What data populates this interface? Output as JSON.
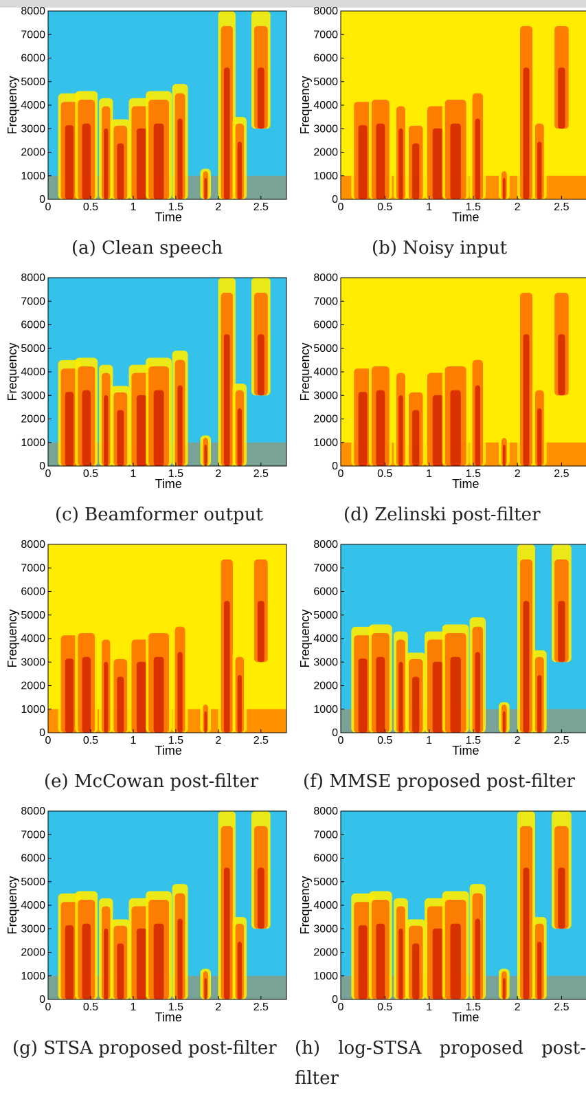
{
  "colors": {
    "background": "#3ec6e0",
    "lowEnergy": "#34c2ea",
    "midEnergy": "#ffec00",
    "highEnergy": "#ff6a00",
    "peakEnergy": "#c20000",
    "axis": "#000000"
  },
  "chart_data": [
    {
      "type": "heatmap",
      "caption": "(a) Clean speech",
      "xlabel": "Time",
      "ylabel": "Frequency",
      "xlim": [
        0,
        2.8
      ],
      "ylim": [
        0,
        8000
      ],
      "xticks": [
        "0",
        "0.5",
        "1",
        "1.5",
        "2",
        "2.5"
      ],
      "yticks": [
        "0",
        "1000",
        "2000",
        "3000",
        "4000",
        "5000",
        "6000",
        "7000",
        "8000"
      ]
    },
    {
      "type": "heatmap",
      "caption": "(b) Noisy input",
      "xlabel": "Time",
      "ylabel": "Frequency",
      "xlim": [
        0,
        2.8
      ],
      "ylim": [
        0,
        8000
      ],
      "xticks": [
        "0",
        "0.5",
        "1",
        "1.5",
        "2",
        "2.5"
      ],
      "yticks": [
        "0",
        "1000",
        "2000",
        "3000",
        "4000",
        "5000",
        "6000",
        "7000",
        "8000"
      ]
    },
    {
      "type": "heatmap",
      "caption": "(c) Beamformer output",
      "xlabel": "Time",
      "ylabel": "Frequency",
      "xlim": [
        0,
        2.8
      ],
      "ylim": [
        0,
        8000
      ],
      "xticks": [
        "0",
        "0.5",
        "1",
        "1.5",
        "2",
        "2.5"
      ],
      "yticks": [
        "0",
        "1000",
        "2000",
        "3000",
        "4000",
        "5000",
        "6000",
        "7000",
        "8000"
      ]
    },
    {
      "type": "heatmap",
      "caption": "(d) Zelinski post-filter",
      "xlabel": "Time",
      "ylabel": "Frequency",
      "xlim": [
        0,
        2.8
      ],
      "ylim": [
        0,
        8000
      ],
      "xticks": [
        "0",
        "0.5",
        "1",
        "1.5",
        "2",
        "2.5"
      ],
      "yticks": [
        "0",
        "1000",
        "2000",
        "3000",
        "4000",
        "5000",
        "6000",
        "7000",
        "8000"
      ]
    },
    {
      "type": "heatmap",
      "caption": "(e) McCowan post-filter",
      "xlabel": "Time",
      "ylabel": "Frequency",
      "xlim": [
        0,
        2.8
      ],
      "ylim": [
        0,
        8000
      ],
      "xticks": [
        "0",
        "0.5",
        "1",
        "1.5",
        "2",
        "2.5"
      ],
      "yticks": [
        "0",
        "1000",
        "2000",
        "3000",
        "4000",
        "5000",
        "6000",
        "7000",
        "8000"
      ]
    },
    {
      "type": "heatmap",
      "caption": "(f) MMSE proposed post-filter",
      "xlabel": "Time",
      "ylabel": "Frequency",
      "xlim": [
        0,
        2.8
      ],
      "ylim": [
        0,
        8000
      ],
      "xticks": [
        "0",
        "0.5",
        "1",
        "1.5",
        "2",
        "2.5"
      ],
      "yticks": [
        "0",
        "1000",
        "2000",
        "3000",
        "4000",
        "5000",
        "6000",
        "7000",
        "8000"
      ]
    },
    {
      "type": "heatmap",
      "caption": "(g) STSA proposed post-filter",
      "xlabel": "Time",
      "ylabel": "Frequency",
      "xlim": [
        0,
        2.8
      ],
      "ylim": [
        0,
        8000
      ],
      "xticks": [
        "0",
        "0.5",
        "1",
        "1.5",
        "2",
        "2.5"
      ],
      "yticks": [
        "0",
        "1000",
        "2000",
        "3000",
        "4000",
        "5000",
        "6000",
        "7000",
        "8000"
      ]
    },
    {
      "type": "heatmap",
      "caption": "(h) log-STSA proposed post-filter",
      "caption_line1": "(h) log-STSA proposed post-",
      "caption_line2": "filter",
      "xlabel": "Time",
      "ylabel": "Frequency",
      "xlim": [
        0,
        2.8
      ],
      "ylim": [
        0,
        8000
      ],
      "xticks": [
        "0",
        "0.5",
        "1",
        "1.5",
        "2",
        "2.5"
      ],
      "yticks": [
        "0",
        "1000",
        "2000",
        "3000",
        "4000",
        "5000",
        "6000",
        "7000",
        "8000"
      ]
    }
  ]
}
